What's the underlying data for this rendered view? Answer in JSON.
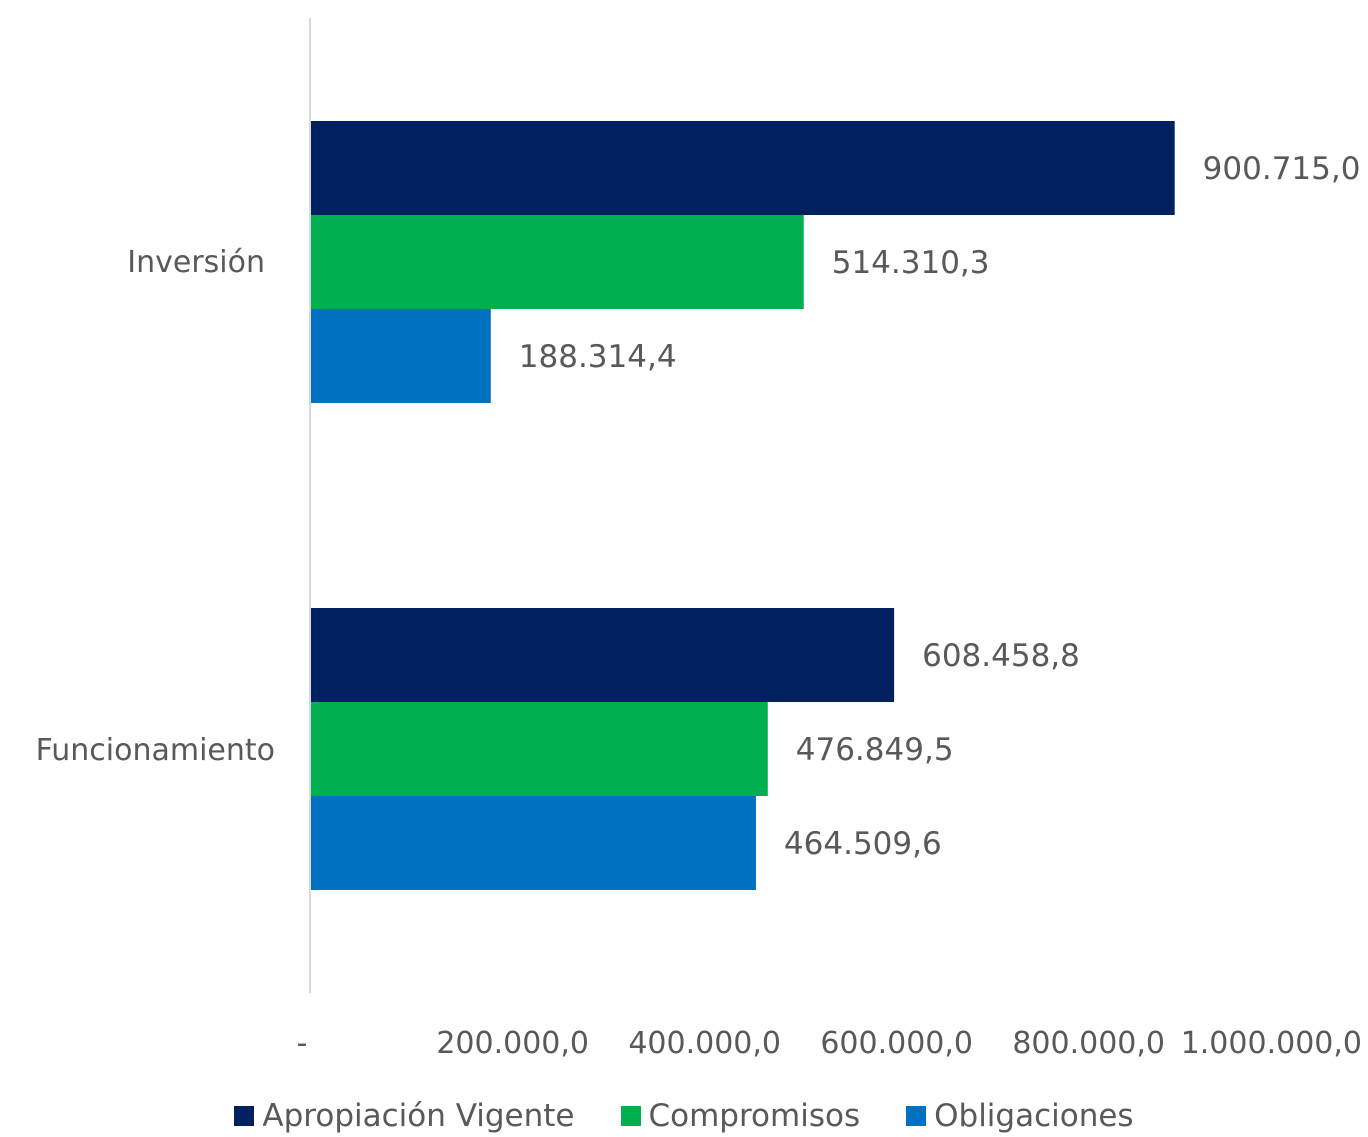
{
  "chart_data": {
    "type": "bar",
    "orientation": "horizontal",
    "categories": [
      "Funcionamiento",
      "Inversión"
    ],
    "series": [
      {
        "name": "Apropiación Vigente",
        "color": "#002060",
        "values": [
          608458.8,
          900715.0
        ],
        "labels": [
          "608.458,8",
          "900.715,0"
        ]
      },
      {
        "name": "Compromisos",
        "color": "#00B050",
        "values": [
          476849.5,
          514310.3
        ],
        "labels": [
          "476.849,5",
          "514.310,3"
        ]
      },
      {
        "name": "Obligaciones",
        "color": "#0070C0",
        "values": [
          464509.6,
          188314.4
        ],
        "labels": [
          "464.509,6",
          "188.314,4"
        ]
      }
    ],
    "xlim": [
      0,
      1000000
    ],
    "xticks": [
      0,
      200000,
      400000,
      600000,
      800000,
      1000000
    ],
    "xtick_labels": [
      "-",
      "200.000,0",
      "400.000,0",
      "600.000,0",
      "800.000,0",
      "1.000.000,0"
    ],
    "legend_position": "bottom",
    "grid": false
  }
}
